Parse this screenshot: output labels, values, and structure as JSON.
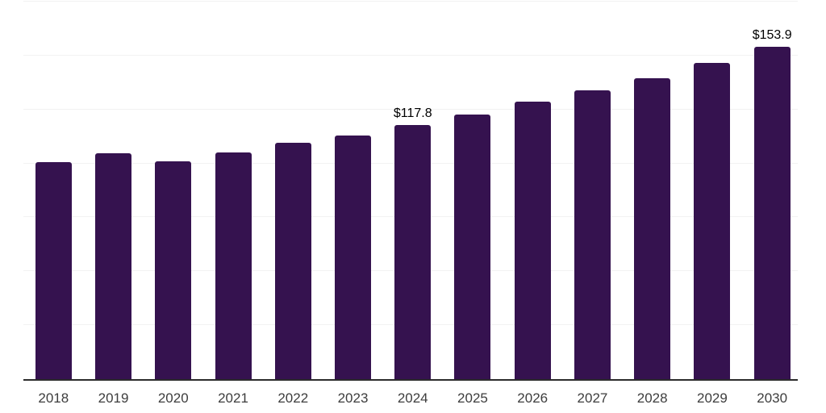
{
  "chart_data": {
    "type": "bar",
    "title": "",
    "xlabel": "",
    "ylabel": "",
    "categories": [
      "2018",
      "2019",
      "2020",
      "2021",
      "2022",
      "2023",
      "2024",
      "2025",
      "2026",
      "2027",
      "2028",
      "2029",
      "2030"
    ],
    "values": [
      100.7,
      104.8,
      101.0,
      105.1,
      109.6,
      113.0,
      117.8,
      122.6,
      128.6,
      133.8,
      139.4,
      146.5,
      153.9
    ],
    "data_labels": [
      "",
      "",
      "",
      "",
      "",
      "",
      "$117.8",
      "",
      "",
      "",
      "",
      "",
      "$153.9"
    ],
    "ylim": [
      0,
      175
    ],
    "gridline_step": 25,
    "grid": "horizontal-only",
    "legend": "none",
    "colors": {
      "bar": "#35124F",
      "axis_line": "#2b2b2b",
      "gridline": "#f2f2f2",
      "tick_label": "#3d3d3d",
      "data_label": "#000000",
      "background": "#ffffff"
    }
  }
}
